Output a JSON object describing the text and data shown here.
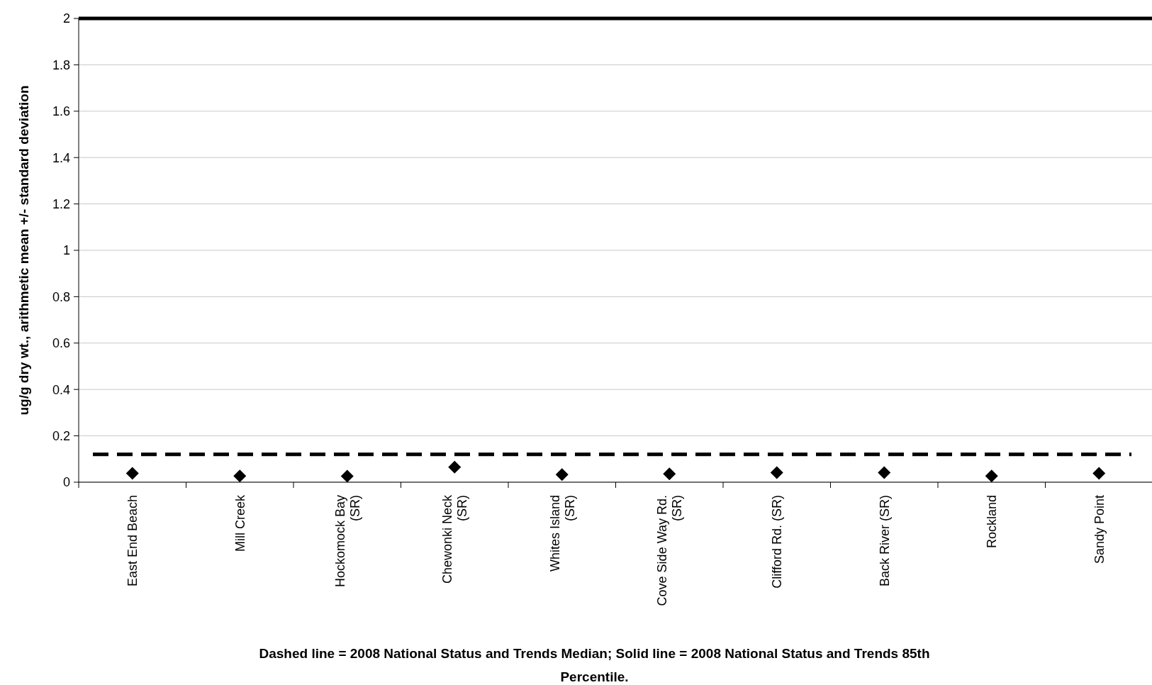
{
  "chart_data": {
    "type": "scatter",
    "ylabel": "ug/g dry wt., arithmetic mean +/- standard deviation",
    "xlabel": "Dashed line = 2008 National Status and Trends Median; Solid line = 2008 National Status and Trends 85th Percentile.",
    "categories": [
      "East End Beach",
      "Mill Creek",
      "Hockomock Bay (SR)",
      "Chewonki Neck (SR)",
      "Whites Island (SR)",
      "Cove Side Way Rd. (SR)",
      "Clifford Rd. (SR)",
      "Back River (SR)",
      "Rockland",
      "Sandy Point"
    ],
    "series": [
      {
        "color": "#000000",
        "values": [
          0.038,
          0.027,
          0.026,
          0.065,
          0.033,
          0.036,
          0.041,
          0.041,
          0.027,
          0.038
        ]
      }
    ],
    "marker": "diamond",
    "ylim": [
      0,
      2
    ],
    "yticks": [
      0,
      0.2,
      0.4,
      0.6,
      0.8,
      1,
      1.2,
      1.4,
      1.6,
      1.8,
      2
    ],
    "grid": "y",
    "ref_lines": [
      {
        "axis": "y",
        "value": 0.12,
        "color": "#000000",
        "line_style": "dashed"
      },
      {
        "axis": "y",
        "value": 2,
        "color": "#000000",
        "line_style": "solid"
      }
    ]
  }
}
